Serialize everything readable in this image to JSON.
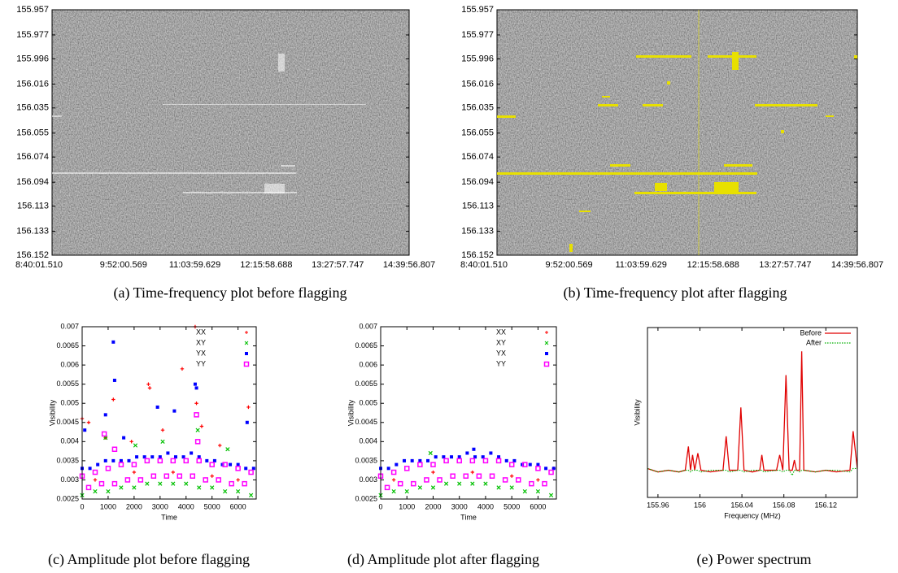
{
  "chart_data": [
    {
      "type": "heatmap",
      "caption": "(a) Time-frequency plot before flagging",
      "categories": [
        "8:40:01.510",
        "9:52:00.569",
        "11:03:59.629",
        "12:15:58.688",
        "13:27:57.747",
        "14:39:56.807"
      ],
      "ylim": [
        155.957,
        156.152
      ],
      "y_reversed": true,
      "yticks": [
        155.957,
        155.977,
        155.996,
        156.016,
        156.035,
        156.055,
        156.074,
        156.094,
        156.113,
        156.133,
        156.152
      ]
    },
    {
      "type": "heatmap",
      "caption": "(b) Time-frequency plot after flagging",
      "categories": [
        "8:40:01.510",
        "9:52:00.569",
        "11:03:59.629",
        "12:15:58.688",
        "13:27:57.747",
        "14:39:56.807"
      ],
      "ylim": [
        155.957,
        156.152
      ],
      "y_reversed": true,
      "yticks": [
        155.957,
        155.977,
        155.996,
        156.016,
        156.035,
        156.055,
        156.074,
        156.094,
        156.113,
        156.133,
        156.152
      ]
    },
    {
      "type": "scatter",
      "caption": "(c) Amplitude plot before flagging",
      "xlabel": "Time",
      "ylabel": "Visibility",
      "xlim": [
        0,
        6700
      ],
      "xticks": [
        0,
        1000,
        2000,
        3000,
        4000,
        5000,
        6000
      ],
      "ylim": [
        0.0025,
        0.007
      ],
      "yticks": [
        0.0025,
        0.003,
        0.0035,
        0.004,
        0.0045,
        0.005,
        0.0055,
        0.006,
        0.0065,
        0.007
      ],
      "legend": "upper right",
      "series": [
        {
          "name": "XX",
          "color": "#ff0000",
          "marker": "plus",
          "x": [
            4350,
            2550,
            2600,
            3850,
            1200,
            6400,
            250,
            900,
            0,
            4600,
            5300,
            1900,
            3100,
            4400,
            500,
            2000,
            3500,
            5000,
            6000
          ],
          "values": [
            0.007,
            0.0055,
            0.0054,
            0.0059,
            0.0051,
            0.0049,
            0.0045,
            0.0041,
            0.0046,
            0.0044,
            0.0039,
            0.004,
            0.0043,
            0.005,
            0.003,
            0.0032,
            0.0032,
            0.0031,
            0.003
          ]
        },
        {
          "name": "XY",
          "color": "#00c000",
          "marker": "cross",
          "x": [
            0,
            500,
            1000,
            1500,
            2000,
            2500,
            3000,
            3500,
            4000,
            4500,
            5000,
            5500,
            6000,
            6500,
            900,
            2050,
            3100,
            4450,
            5600
          ],
          "values": [
            0.0026,
            0.0027,
            0.0027,
            0.0028,
            0.0028,
            0.0029,
            0.0029,
            0.0029,
            0.0029,
            0.0028,
            0.0028,
            0.0027,
            0.0027,
            0.0026,
            0.0041,
            0.0039,
            0.004,
            0.0043,
            0.0038
          ]
        },
        {
          "name": "YX",
          "color": "#0000ff",
          "marker": "filled-square",
          "x": [
            0,
            300,
            600,
            900,
            1200,
            1500,
            1800,
            2100,
            2400,
            2700,
            3000,
            3300,
            3600,
            3900,
            4200,
            4500,
            4800,
            5100,
            5400,
            5700,
            6000,
            6300,
            6600,
            1200,
            1250,
            900,
            2900,
            3550,
            4350,
            4400,
            6350,
            100,
            1600
          ],
          "values": [
            0.0033,
            0.0033,
            0.0034,
            0.0035,
            0.0035,
            0.0035,
            0.0035,
            0.0036,
            0.0036,
            0.0036,
            0.0036,
            0.0037,
            0.0036,
            0.0036,
            0.0037,
            0.0036,
            0.0035,
            0.0035,
            0.0034,
            0.0034,
            0.0034,
            0.0033,
            0.0033,
            0.0066,
            0.0056,
            0.0047,
            0.0049,
            0.0048,
            0.0055,
            0.0054,
            0.0045,
            0.0043,
            0.0041
          ]
        },
        {
          "name": "YY",
          "color": "#ff00ff",
          "marker": "open-square",
          "x": [
            0,
            250,
            500,
            750,
            1000,
            1250,
            1500,
            1750,
            2000,
            2250,
            2500,
            2750,
            3000,
            3250,
            3500,
            3750,
            4000,
            4250,
            4500,
            4750,
            5000,
            5250,
            5500,
            5750,
            6000,
            6250,
            6500,
            850,
            4400,
            4450,
            1250
          ],
          "values": [
            0.0031,
            0.0028,
            0.0032,
            0.0029,
            0.0033,
            0.0029,
            0.0034,
            0.003,
            0.0034,
            0.003,
            0.0035,
            0.0031,
            0.0035,
            0.0031,
            0.0035,
            0.0031,
            0.0035,
            0.0031,
            0.0035,
            0.003,
            0.0034,
            0.003,
            0.0034,
            0.0029,
            0.0033,
            0.0029,
            0.0032,
            0.0042,
            0.0047,
            0.004,
            0.0038
          ]
        }
      ]
    },
    {
      "type": "scatter",
      "caption": "(d) Amplitude plot after flagging",
      "xlabel": "Time",
      "ylabel": "Visibility",
      "xlim": [
        0,
        6700
      ],
      "xticks": [
        0,
        1000,
        2000,
        3000,
        4000,
        5000,
        6000
      ],
      "ylim": [
        0.0025,
        0.007
      ],
      "yticks": [
        0.0025,
        0.003,
        0.0035,
        0.004,
        0.0045,
        0.005,
        0.0055,
        0.006,
        0.0065,
        0.007
      ],
      "legend": "upper right",
      "series": [
        {
          "name": "XX",
          "color": "#ff0000",
          "marker": "plus",
          "x": [
            500,
            2000,
            3500,
            5000,
            6000,
            6600
          ],
          "values": [
            0.003,
            0.0032,
            0.0032,
            0.0031,
            0.003,
            0.0033
          ]
        },
        {
          "name": "XY",
          "color": "#00c000",
          "marker": "cross",
          "x": [
            0,
            500,
            1000,
            1500,
            2000,
            2500,
            3000,
            3500,
            4000,
            4500,
            5000,
            5500,
            6000,
            6500,
            1900
          ],
          "values": [
            0.0026,
            0.0027,
            0.0027,
            0.0028,
            0.0028,
            0.0029,
            0.0029,
            0.0029,
            0.0029,
            0.0028,
            0.0028,
            0.0027,
            0.0027,
            0.0026,
            0.0037
          ]
        },
        {
          "name": "YX",
          "color": "#0000ff",
          "marker": "filled-square",
          "x": [
            0,
            300,
            600,
            900,
            1200,
            1500,
            1800,
            2100,
            2400,
            2700,
            3000,
            3300,
            3600,
            3900,
            4200,
            4500,
            4800,
            5100,
            5400,
            5700,
            6000,
            6300,
            6600,
            3550
          ],
          "values": [
            0.0033,
            0.0033,
            0.0034,
            0.0035,
            0.0035,
            0.0035,
            0.0035,
            0.0036,
            0.0036,
            0.0036,
            0.0036,
            0.0037,
            0.0036,
            0.0036,
            0.0037,
            0.0036,
            0.0035,
            0.0035,
            0.0034,
            0.0034,
            0.0034,
            0.0033,
            0.0033,
            0.0038
          ]
        },
        {
          "name": "YY",
          "color": "#ff00ff",
          "marker": "open-square",
          "x": [
            0,
            250,
            500,
            750,
            1000,
            1250,
            1500,
            1750,
            2000,
            2250,
            2500,
            2750,
            3000,
            3250,
            3500,
            3750,
            4000,
            4250,
            4500,
            4750,
            5000,
            5250,
            5500,
            5750,
            6000,
            6250,
            6500
          ],
          "values": [
            0.0031,
            0.0028,
            0.0032,
            0.0029,
            0.0033,
            0.0029,
            0.0034,
            0.003,
            0.0034,
            0.003,
            0.0035,
            0.0031,
            0.0035,
            0.0031,
            0.0035,
            0.0031,
            0.0035,
            0.0031,
            0.0035,
            0.003,
            0.0034,
            0.003,
            0.0034,
            0.0029,
            0.0033,
            0.0029,
            0.0032
          ]
        }
      ]
    },
    {
      "type": "line",
      "caption": "(e) Power spectrum",
      "xlabel": "Frequency (MHz)",
      "ylabel": "Visibility",
      "xlim": [
        155.95,
        156.15
      ],
      "xticks": [
        155.96,
        156,
        156.04,
        156.08,
        156.12
      ],
      "ylim": [
        0,
        10
      ],
      "legend": "upper right",
      "x": [
        155.95,
        155.96,
        155.97,
        155.98,
        155.986,
        155.989,
        155.991,
        155.993,
        155.995,
        155.998,
        156.001,
        156.01,
        156.022,
        156.025,
        156.028,
        156.036,
        156.039,
        156.042,
        156.05,
        156.057,
        156.059,
        156.061,
        156.073,
        156.076,
        156.079,
        156.082,
        156.085,
        156.088,
        156.09,
        156.092,
        156.095,
        156.097,
        156.099,
        156.11,
        156.12,
        156.13,
        156.143,
        156.146,
        156.15
      ],
      "series": [
        {
          "name": "Before",
          "color": "#e00000",
          "style": "solid",
          "values": [
            1.7,
            1.5,
            1.6,
            1.5,
            1.6,
            3.0,
            1.6,
            2.5,
            1.6,
            2.6,
            1.6,
            1.5,
            1.6,
            3.6,
            1.6,
            1.6,
            5.3,
            1.6,
            1.5,
            1.6,
            2.5,
            1.6,
            1.6,
            2.5,
            1.6,
            7.2,
            1.6,
            1.6,
            2.2,
            1.6,
            1.6,
            8.6,
            1.6,
            1.5,
            1.6,
            1.5,
            1.6,
            3.9,
            1.7
          ]
        },
        {
          "name": "After",
          "color": "#00b000",
          "style": "dotted",
          "values": [
            1.7,
            1.5,
            1.6,
            1.5,
            1.6,
            1.6,
            1.5,
            1.6,
            1.6,
            1.6,
            1.5,
            1.6,
            1.6,
            1.6,
            1.5,
            1.6,
            1.6,
            1.5,
            1.6,
            1.6,
            1.6,
            1.5,
            1.6,
            1.6,
            1.5,
            1.6,
            1.6,
            1.3,
            1.6,
            1.6,
            1.5,
            1.6,
            1.6,
            1.5,
            1.6,
            1.6,
            1.5,
            1.7,
            1.7
          ]
        }
      ]
    }
  ]
}
